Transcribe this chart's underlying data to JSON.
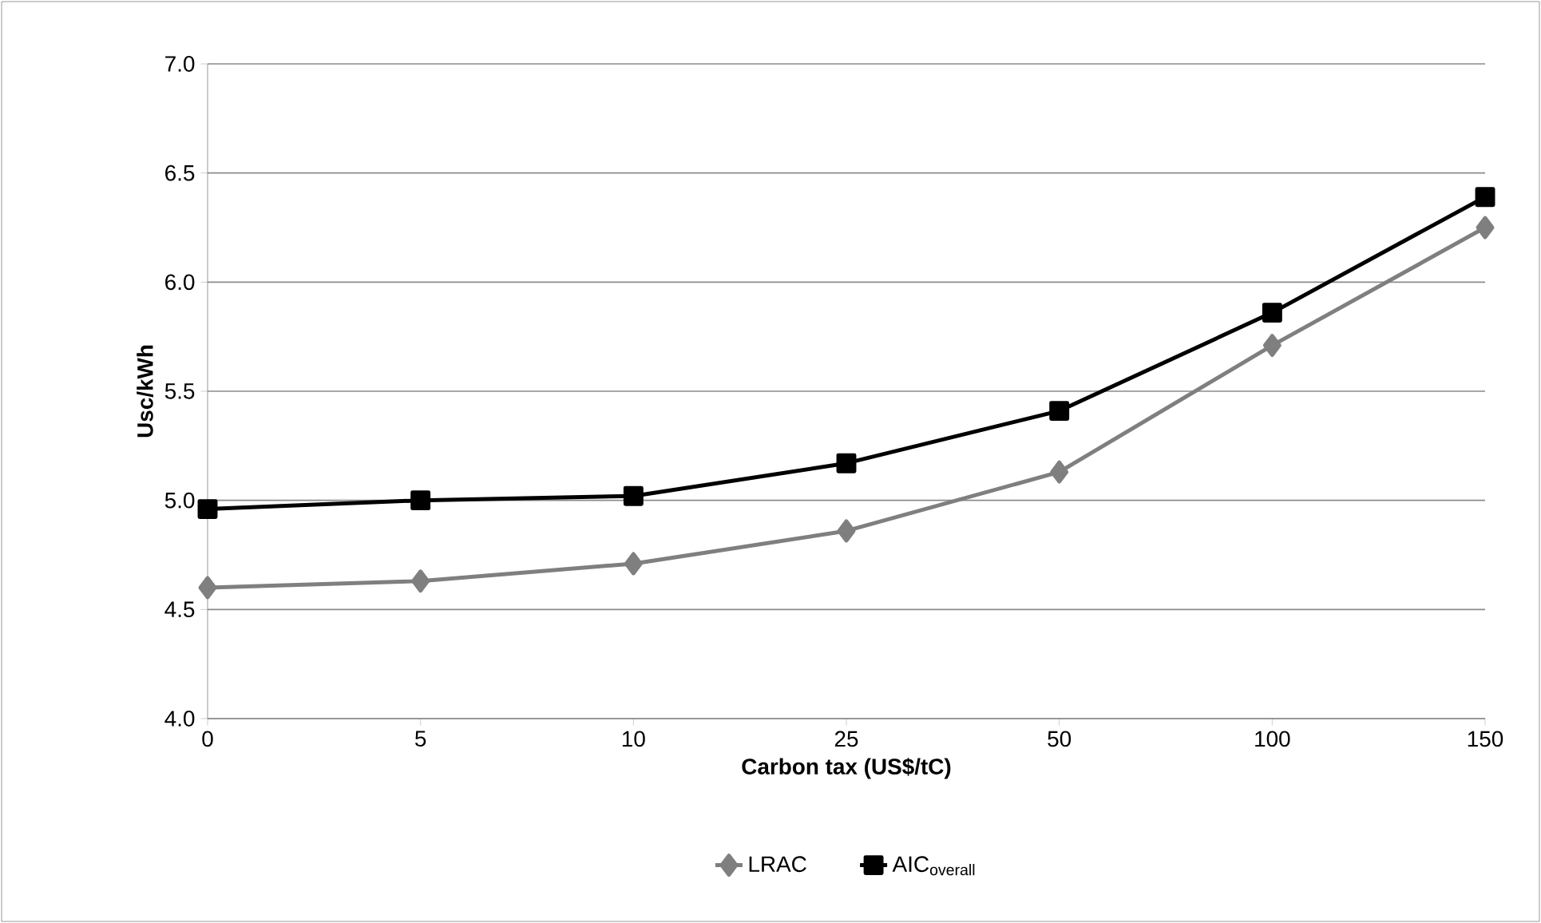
{
  "chart_data": {
    "type": "line",
    "xlabel": "Carbon tax (US$/tC)",
    "ylabel": "Usc/kWh",
    "categories": [
      "0",
      "5",
      "10",
      "25",
      "50",
      "100",
      "150"
    ],
    "series": [
      {
        "name": "LRAC",
        "color": "#7f7f7f",
        "marker": "diamond",
        "values": [
          4.6,
          4.63,
          4.71,
          4.86,
          5.13,
          5.71,
          6.25
        ]
      },
      {
        "name": "AIC$_{overall}$",
        "color": "#000000",
        "marker": "square",
        "values": [
          4.96,
          5.0,
          5.02,
          5.17,
          5.41,
          5.86,
          6.39
        ]
      }
    ],
    "ylim": [
      4.0,
      7.0
    ],
    "yticks": [
      {
        "value": 4.0,
        "label": "4.0"
      },
      {
        "value": 4.5,
        "label": "4.5"
      },
      {
        "value": 5.0,
        "label": "5.0"
      },
      {
        "value": 5.5,
        "label": "5.5"
      },
      {
        "value": 6.0,
        "label": "6.0"
      },
      {
        "value": 6.5,
        "label": "6.5"
      },
      {
        "value": 7.0,
        "label": "7.0"
      }
    ],
    "grid": "y",
    "legend": "bottom",
    "line_style": "solid"
  }
}
